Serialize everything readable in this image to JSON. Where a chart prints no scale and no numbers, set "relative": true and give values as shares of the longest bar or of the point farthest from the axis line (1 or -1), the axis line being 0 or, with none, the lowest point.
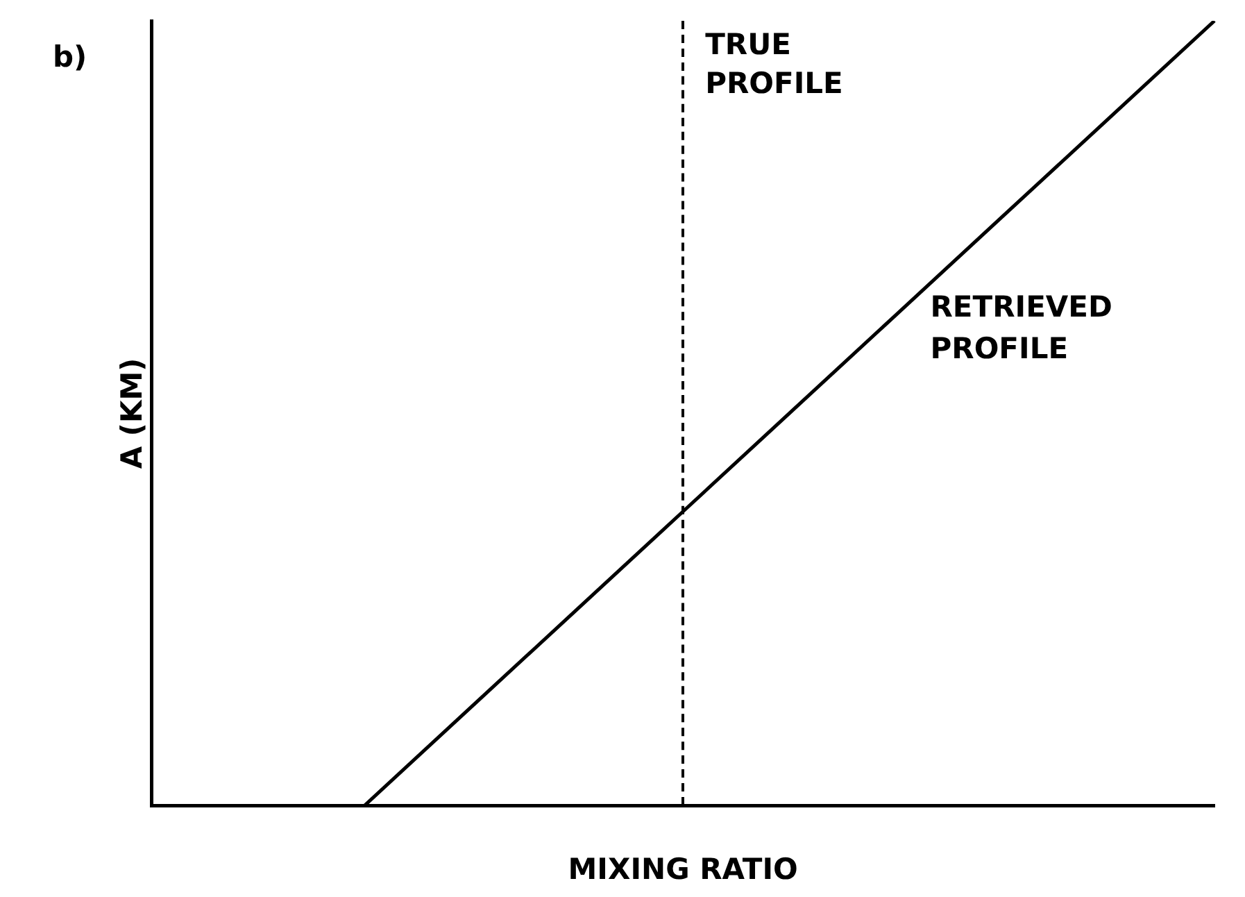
{
  "chart_data": {
    "type": "line",
    "relative": true,
    "xlabel": "MIXING RATIO",
    "ylabel": "A (KM)",
    "categories": [
      null,
      null,
      null,
      null,
      null,
      null,
      null,
      null,
      null,
      null,
      null
    ],
    "grid": false,
    "legend": false,
    "marker": "none",
    "line_style": "solid",
    "series": [
      {
        "name": "RETRIEVED PROFILE",
        "color": "#000000",
        "values": [
          null,
          null,
          0,
          0.125,
          0.25,
          0.375,
          0.5,
          0.625,
          0.75,
          0.875,
          1
        ]
      }
    ],
    "annotations": [
      "b)",
      "TRUE PROFILE"
    ]
  }
}
